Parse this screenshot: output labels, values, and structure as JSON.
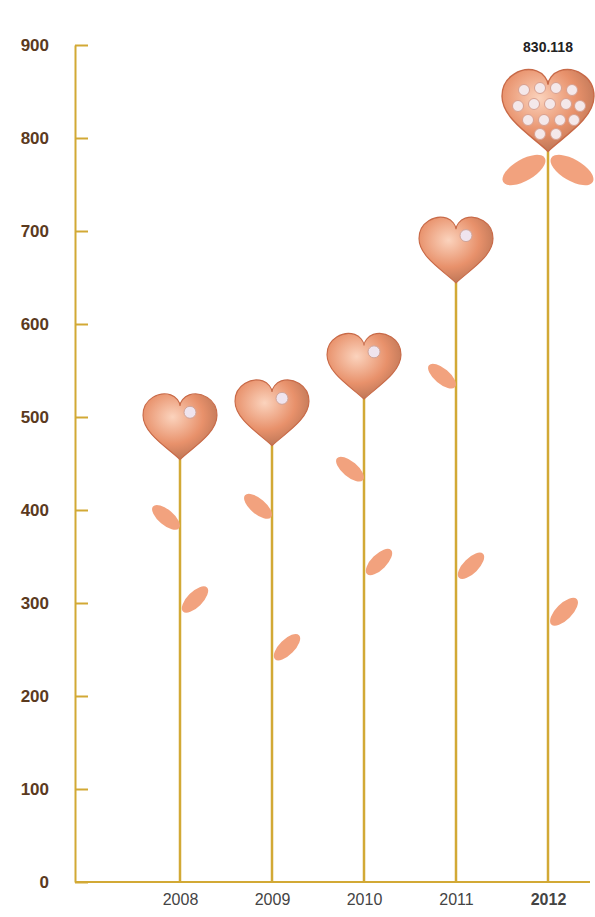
{
  "chart_data": {
    "type": "bar",
    "categories": [
      "2008",
      "2009",
      "2010",
      "2011",
      "2012"
    ],
    "values": [
      490,
      505,
      555,
      680,
      830.118
    ],
    "value_labels": [
      null,
      null,
      null,
      null,
      "830.118"
    ],
    "color": "#e8916b",
    "ylim": [
      0,
      900
    ],
    "yticks": [
      0,
      100,
      200,
      300,
      400,
      500,
      600,
      700,
      800,
      900
    ]
  }
}
